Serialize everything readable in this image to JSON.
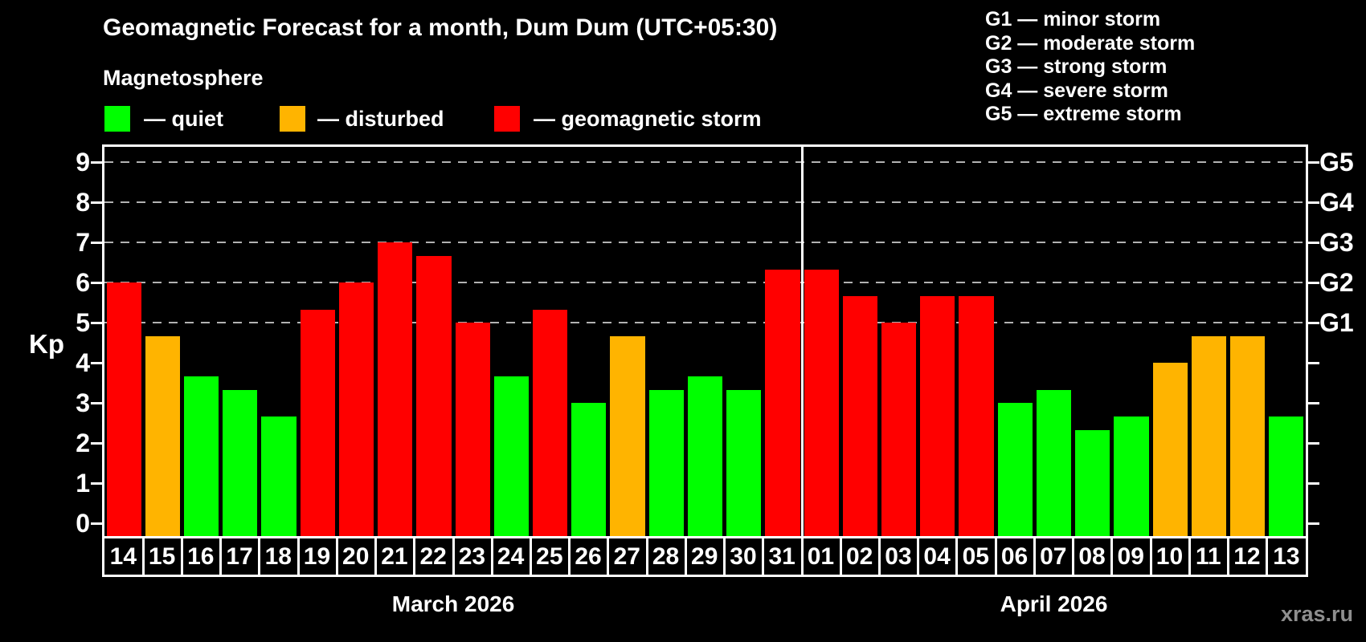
{
  "subtitle": "Magnetosphere",
  "legend": {
    "items": [
      {
        "key": "quiet",
        "label": "— quiet",
        "color": "#00ff00"
      },
      {
        "key": "disturbed",
        "label": "— disturbed",
        "color": "#ffb400"
      },
      {
        "key": "storm",
        "label": "— geomagnetic storm",
        "color": "#ff0000"
      }
    ]
  },
  "storm_scale_legend": [
    "G1 — minor storm",
    "G2 — moderate storm",
    "G3 — strong storm",
    "G4 — severe storm",
    "G5 — extreme storm"
  ],
  "watermark": "xras.ru",
  "chart_data": {
    "type": "bar",
    "title": "Geomagnetic Forecast for a month, Dum Dum (UTC+05:30)",
    "ylabel": "Kp",
    "ylim": [
      0,
      9
    ],
    "yticks": [
      0,
      1,
      2,
      3,
      4,
      5,
      6,
      7,
      8,
      9
    ],
    "gridlines_at": [
      5,
      6,
      7,
      8,
      9
    ],
    "grid": "horizontal dashed lines at Kp 5-9 only",
    "right_axis": [
      {
        "kp": 5,
        "label": "G1"
      },
      {
        "kp": 6,
        "label": "G2"
      },
      {
        "kp": 7,
        "label": "G3"
      },
      {
        "kp": 8,
        "label": "G4"
      },
      {
        "kp": 9,
        "label": "G5"
      }
    ],
    "months": [
      {
        "label": "March 2026",
        "days": 18
      },
      {
        "label": "April 2026",
        "days": 13
      }
    ],
    "categories": [
      "14",
      "15",
      "16",
      "17",
      "18",
      "19",
      "20",
      "21",
      "22",
      "23",
      "24",
      "25",
      "26",
      "27",
      "28",
      "29",
      "30",
      "31",
      "01",
      "02",
      "03",
      "04",
      "05",
      "06",
      "07",
      "08",
      "09",
      "10",
      "11",
      "12",
      "13"
    ],
    "values": [
      6,
      4.67,
      3.67,
      3.33,
      2.67,
      5.33,
      6,
      7,
      6.67,
      5,
      3.67,
      5.33,
      3,
      4.67,
      3.33,
      3.67,
      3.33,
      6.33,
      6.33,
      5.67,
      5,
      5.67,
      5.67,
      3,
      3.33,
      2.33,
      2.67,
      4,
      4.67,
      4.67,
      2.67
    ],
    "statuses": [
      "storm",
      "disturbed",
      "quiet",
      "quiet",
      "quiet",
      "storm",
      "storm",
      "storm",
      "storm",
      "storm",
      "quiet",
      "storm",
      "quiet",
      "disturbed",
      "quiet",
      "quiet",
      "quiet",
      "storm",
      "storm",
      "storm",
      "storm",
      "storm",
      "storm",
      "quiet",
      "quiet",
      "quiet",
      "quiet",
      "disturbed",
      "disturbed",
      "disturbed",
      "quiet"
    ],
    "colors": {
      "quiet": "#00ff00",
      "disturbed": "#ffb400",
      "storm": "#ff0000"
    }
  }
}
